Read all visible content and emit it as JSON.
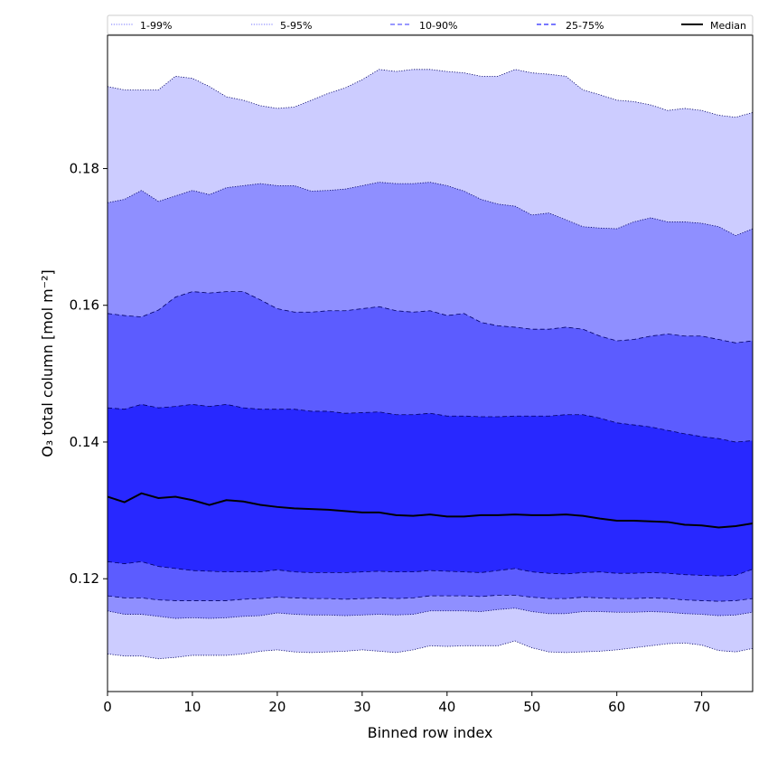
{
  "chart_data": {
    "type": "area",
    "title": "",
    "xlabel": "Binned row index",
    "ylabel": "O₃ total column [mol m⁻²]",
    "xlim": [
      0,
      76
    ],
    "ylim": [
      0.1035,
      0.1995
    ],
    "x_ticks": [
      0,
      10,
      20,
      30,
      40,
      50,
      60,
      70
    ],
    "y_ticks": [
      0.12,
      0.14,
      0.16,
      0.18
    ],
    "x_tick_labels": [
      "0",
      "10",
      "20",
      "30",
      "40",
      "50",
      "60",
      "70"
    ],
    "y_tick_labels": [
      "0.12",
      "0.14",
      "0.16",
      "0.18"
    ],
    "grid": false,
    "legend_position": "top",
    "x": [
      0,
      2,
      4,
      6,
      8,
      10,
      12,
      14,
      16,
      18,
      20,
      22,
      24,
      26,
      28,
      30,
      32,
      34,
      36,
      38,
      40,
      42,
      44,
      46,
      48,
      50,
      52,
      54,
      56,
      58,
      60,
      62,
      64,
      66,
      68,
      70,
      72,
      74,
      76
    ],
    "bands": [
      {
        "name": "1-99%",
        "color": "#ccccff",
        "edge_style": "dotted",
        "lower": [
          0.109,
          0.1087,
          0.1087,
          0.1083,
          0.1085,
          0.1088,
          0.1088,
          0.1088,
          0.109,
          0.1094,
          0.1096,
          0.1093,
          0.1092,
          0.1093,
          0.1094,
          0.1096,
          0.1094,
          0.1092,
          0.1096,
          0.1102,
          0.1101,
          0.1102,
          0.1102,
          0.1102,
          0.1109,
          0.1099,
          0.1093,
          0.1092,
          0.1093,
          0.1094,
          0.1096,
          0.1099,
          0.1102,
          0.1105,
          0.1106,
          0.1103,
          0.1095,
          0.1093,
          0.1098
        ],
        "upper": [
          0.192,
          0.1915,
          0.1915,
          0.1915,
          0.1935,
          0.1932,
          0.192,
          0.1905,
          0.19,
          0.1892,
          0.1888,
          0.189,
          0.19,
          0.191,
          0.1918,
          0.193,
          0.1945,
          0.1942,
          0.1945,
          0.1945,
          0.1942,
          0.194,
          0.1935,
          0.1935,
          0.1945,
          0.194,
          0.1938,
          0.1935,
          0.1915,
          0.1908,
          0.19,
          0.1898,
          0.1893,
          0.1885,
          0.1888,
          0.1885,
          0.1878,
          0.1875,
          0.1882
        ]
      },
      {
        "name": "5-95%",
        "color": "#8f8fff",
        "edge_style": "dotted",
        "lower": [
          0.1153,
          0.1148,
          0.1148,
          0.1145,
          0.1142,
          0.1143,
          0.1142,
          0.1143,
          0.1145,
          0.1146,
          0.115,
          0.1148,
          0.1147,
          0.1147,
          0.1146,
          0.1147,
          0.1148,
          0.1147,
          0.1148,
          0.1153,
          0.1153,
          0.1153,
          0.1152,
          0.1155,
          0.1157,
          0.1152,
          0.1149,
          0.1149,
          0.1152,
          0.1152,
          0.1151,
          0.1151,
          0.1152,
          0.1151,
          0.1149,
          0.1148,
          0.1146,
          0.1147,
          0.1151
        ],
        "upper": [
          0.175,
          0.1755,
          0.1768,
          0.1752,
          0.176,
          0.1768,
          0.1762,
          0.1772,
          0.1775,
          0.1778,
          0.1775,
          0.1775,
          0.1767,
          0.1768,
          0.177,
          0.1775,
          0.178,
          0.1778,
          0.1778,
          0.178,
          0.1775,
          0.1767,
          0.1755,
          0.1748,
          0.1745,
          0.1732,
          0.1735,
          0.1725,
          0.1715,
          0.1713,
          0.1712,
          0.1722,
          0.1728,
          0.1722,
          0.1722,
          0.172,
          0.1715,
          0.1702,
          0.1712
        ]
      },
      {
        "name": "10-90%",
        "color": "#5c5cff",
        "edge_style": "dashed",
        "lower": [
          0.1175,
          0.1172,
          0.1172,
          0.1169,
          0.1168,
          0.1168,
          0.1168,
          0.1168,
          0.117,
          0.1171,
          0.1173,
          0.1172,
          0.1171,
          0.1171,
          0.117,
          0.1171,
          0.1172,
          0.1171,
          0.1172,
          0.1175,
          0.1175,
          0.1175,
          0.1174,
          0.1176,
          0.1176,
          0.1173,
          0.1171,
          0.1171,
          0.1173,
          0.1172,
          0.1171,
          0.1171,
          0.1172,
          0.1171,
          0.1169,
          0.1168,
          0.1167,
          0.1168,
          0.1171
        ],
        "upper": [
          0.1588,
          0.1585,
          0.1583,
          0.1593,
          0.1612,
          0.162,
          0.1618,
          0.162,
          0.162,
          0.1608,
          0.1595,
          0.159,
          0.159,
          0.1592,
          0.1592,
          0.1595,
          0.1598,
          0.1592,
          0.159,
          0.1592,
          0.1585,
          0.1588,
          0.1575,
          0.157,
          0.1568,
          0.1565,
          0.1565,
          0.1568,
          0.1565,
          0.1555,
          0.1548,
          0.155,
          0.1555,
          0.1558,
          0.1555,
          0.1555,
          0.155,
          0.1545,
          0.1548
        ]
      },
      {
        "name": "25-75%",
        "color": "#2828ff",
        "edge_style": "dashed",
        "lower": [
          0.1225,
          0.1222,
          0.1225,
          0.1218,
          0.1215,
          0.1212,
          0.1211,
          0.121,
          0.121,
          0.121,
          0.1213,
          0.121,
          0.1209,
          0.1209,
          0.1209,
          0.121,
          0.1211,
          0.121,
          0.121,
          0.1212,
          0.1211,
          0.121,
          0.1209,
          0.1212,
          0.1215,
          0.121,
          0.1208,
          0.1207,
          0.1209,
          0.121,
          0.1208,
          0.1208,
          0.1209,
          0.1208,
          0.1206,
          0.1205,
          0.1204,
          0.1205,
          0.1214
        ],
        "upper": [
          0.145,
          0.1448,
          0.1455,
          0.145,
          0.1452,
          0.1455,
          0.1452,
          0.1455,
          0.145,
          0.1448,
          0.1448,
          0.1448,
          0.1445,
          0.1445,
          0.1442,
          0.1443,
          0.1444,
          0.144,
          0.144,
          0.1442,
          0.1438,
          0.1438,
          0.1437,
          0.1437,
          0.1438,
          0.1438,
          0.1438,
          0.144,
          0.144,
          0.1435,
          0.1428,
          0.1425,
          0.1422,
          0.1417,
          0.1412,
          0.1408,
          0.1405,
          0.14,
          0.1402
        ]
      }
    ],
    "series": [
      {
        "name": "Median",
        "color": "#000000",
        "values": [
          0.132,
          0.1312,
          0.1325,
          0.1318,
          0.132,
          0.1315,
          0.1308,
          0.1315,
          0.1313,
          0.1308,
          0.1305,
          0.1303,
          0.1302,
          0.1301,
          0.1299,
          0.1297,
          0.1297,
          0.1293,
          0.1292,
          0.1294,
          0.1291,
          0.1291,
          0.1293,
          0.1293,
          0.1294,
          0.1293,
          0.1293,
          0.1294,
          0.1292,
          0.1288,
          0.1285,
          0.1285,
          0.1284,
          0.1283,
          0.1279,
          0.1278,
          0.1275,
          0.1277,
          0.1281
        ]
      }
    ],
    "legend": [
      {
        "label": "1-99%",
        "style": "dotted",
        "color": "#ccccff"
      },
      {
        "label": "5-95%",
        "style": "dotted",
        "color": "#8f8fff"
      },
      {
        "label": "10-90%",
        "style": "dashed",
        "color": "#5c5cff"
      },
      {
        "label": "25-75%",
        "style": "dashed",
        "color": "#2828ff"
      },
      {
        "label": "Median",
        "style": "solid",
        "color": "#000000"
      }
    ]
  }
}
